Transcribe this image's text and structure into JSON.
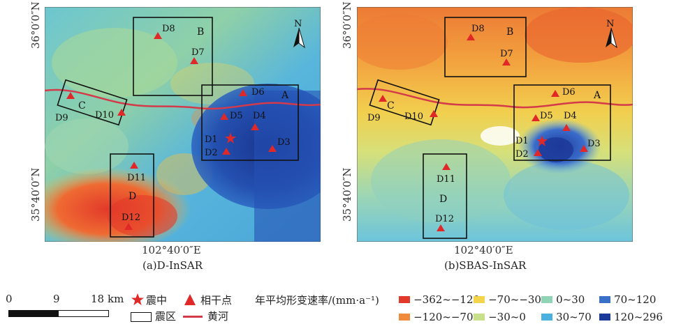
{
  "maps": [
    {
      "id": "a",
      "caption": "(a)D-InSAR",
      "lat_top": "36°0′0″N",
      "lat_bottom": "35°40′0″N",
      "lon": "102°40′0″E",
      "north": "N"
    },
    {
      "id": "b",
      "caption": "(b)SBAS-InSAR",
      "lat_top": "36°0′0″N",
      "lat_bottom": "35°40′0″N",
      "lon": "102°40′0″E",
      "north": "N"
    }
  ],
  "zone_labels": [
    "A",
    "B",
    "C",
    "D"
  ],
  "points": [
    "D1",
    "D2",
    "D3",
    "D4",
    "D5",
    "D6",
    "D7",
    "D8",
    "D9",
    "D10",
    "D11",
    "D12"
  ],
  "scale_bar": {
    "ticks": [
      "0",
      "9",
      "18"
    ],
    "unit": "km"
  },
  "legend": {
    "epicenter": "震中",
    "coherent_point": "相干点",
    "quake_zone": "震区",
    "yellow_river": "黄河",
    "rate_title": "年平均形变速率/(mm·a⁻¹)",
    "classes": [
      {
        "label": "−362~−120",
        "color": "#e23a2a"
      },
      {
        "label": "−120~−70",
        "color": "#f08a3c"
      },
      {
        "label": "−70~−30",
        "color": "#f4d44a"
      },
      {
        "label": "−30~0",
        "color": "#c8e08a"
      },
      {
        "label": "0~30",
        "color": "#8fd4b4"
      },
      {
        "label": "30~70",
        "color": "#4ab0e0"
      },
      {
        "label": "70~120",
        "color": "#3a70c8"
      },
      {
        "label": "120~296",
        "color": "#1c3a9a"
      }
    ]
  }
}
